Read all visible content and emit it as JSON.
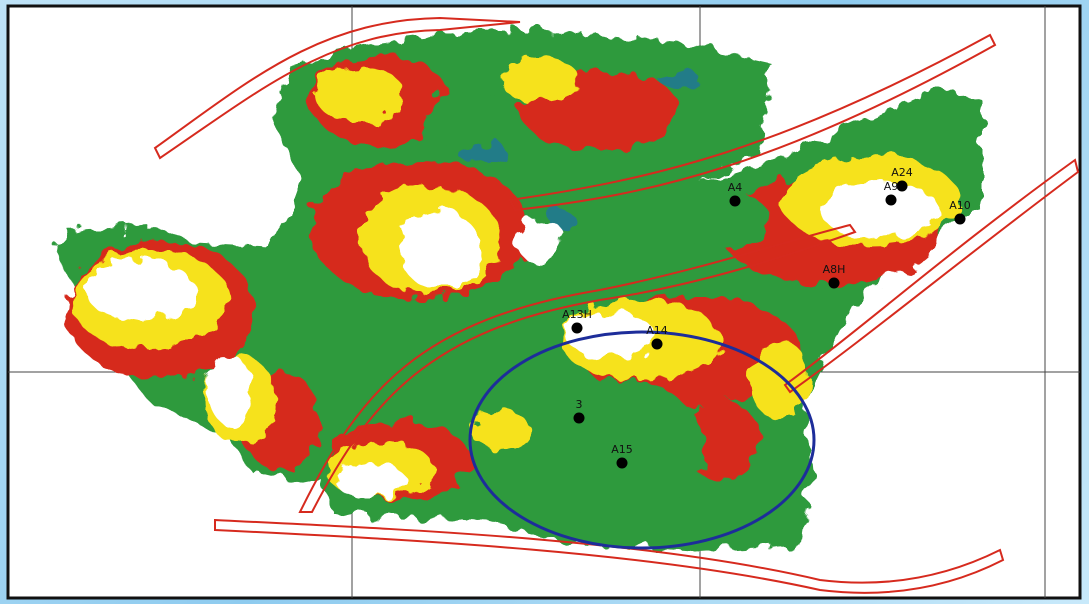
{
  "wells": [
    {
      "label": "A4"
    },
    {
      "label": "A24"
    },
    {
      "label": "A9"
    },
    {
      "label": "A10"
    },
    {
      "label": "A8H"
    },
    {
      "label": "A13H"
    },
    {
      "label": "A14"
    },
    {
      "label": "3"
    },
    {
      "label": "A15"
    }
  ]
}
